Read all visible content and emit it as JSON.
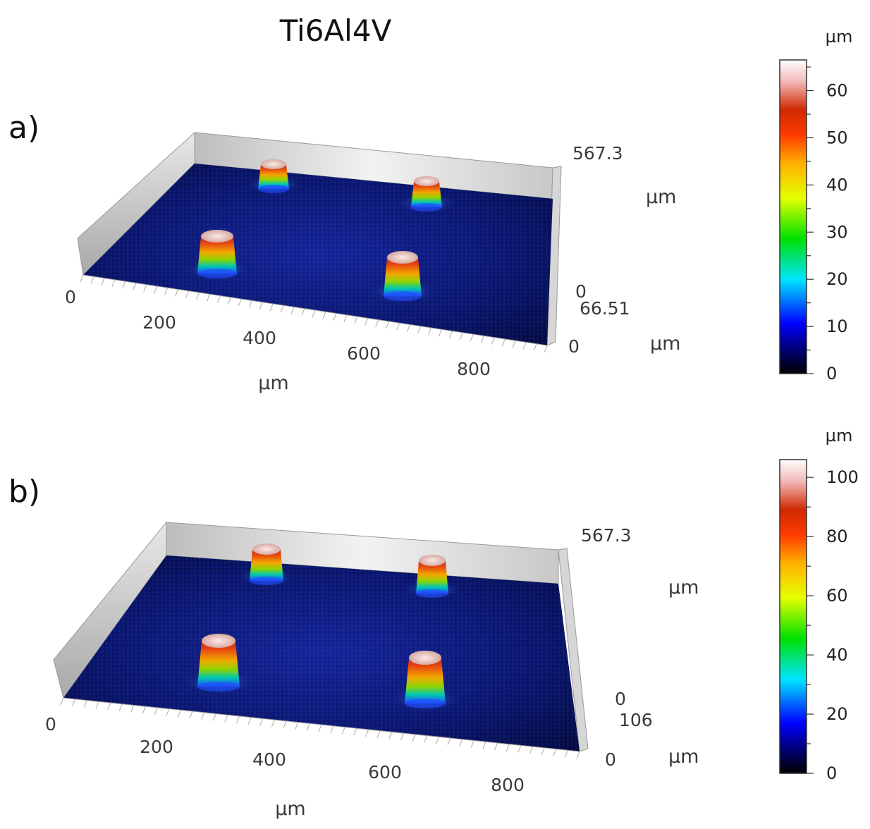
{
  "title": "Ti6Al4V",
  "chart_data": [
    {
      "type": "heatmap",
      "panel_label": "a)",
      "description_type": "3D surface topography",
      "x_axis": {
        "ticks": [
          "0",
          "200",
          "400",
          "600",
          "800"
        ],
        "unit": "µm"
      },
      "y_axis": {
        "ticks": [
          "567.3",
          "0"
        ],
        "unit": "µm"
      },
      "z_axis": {
        "ticks": [
          "66.51",
          "0"
        ],
        "unit": "µm"
      },
      "colorbar": {
        "unit": "µm",
        "ticks": [
          "0",
          "10",
          "20",
          "30",
          "40",
          "50",
          "60"
        ],
        "min": 0,
        "max": 66.51
      },
      "pillars": 4
    },
    {
      "type": "heatmap",
      "panel_label": "b)",
      "description_type": "3D surface topography",
      "x_axis": {
        "ticks": [
          "0",
          "200",
          "400",
          "600",
          "800"
        ],
        "unit": "µm"
      },
      "y_axis": {
        "ticks": [
          "567.3",
          "0"
        ],
        "unit": "µm"
      },
      "z_axis": {
        "ticks": [
          "106",
          "0"
        ],
        "unit": "µm"
      },
      "colorbar": {
        "unit": "µm",
        "ticks": [
          "0",
          "20",
          "40",
          "60",
          "80",
          "100"
        ],
        "min": 0,
        "max": 106
      },
      "pillars": 4
    }
  ],
  "colors": {
    "floor": "#0d1a6e",
    "floor_dark": "#050a3a",
    "wall": "#d8d8d8"
  }
}
